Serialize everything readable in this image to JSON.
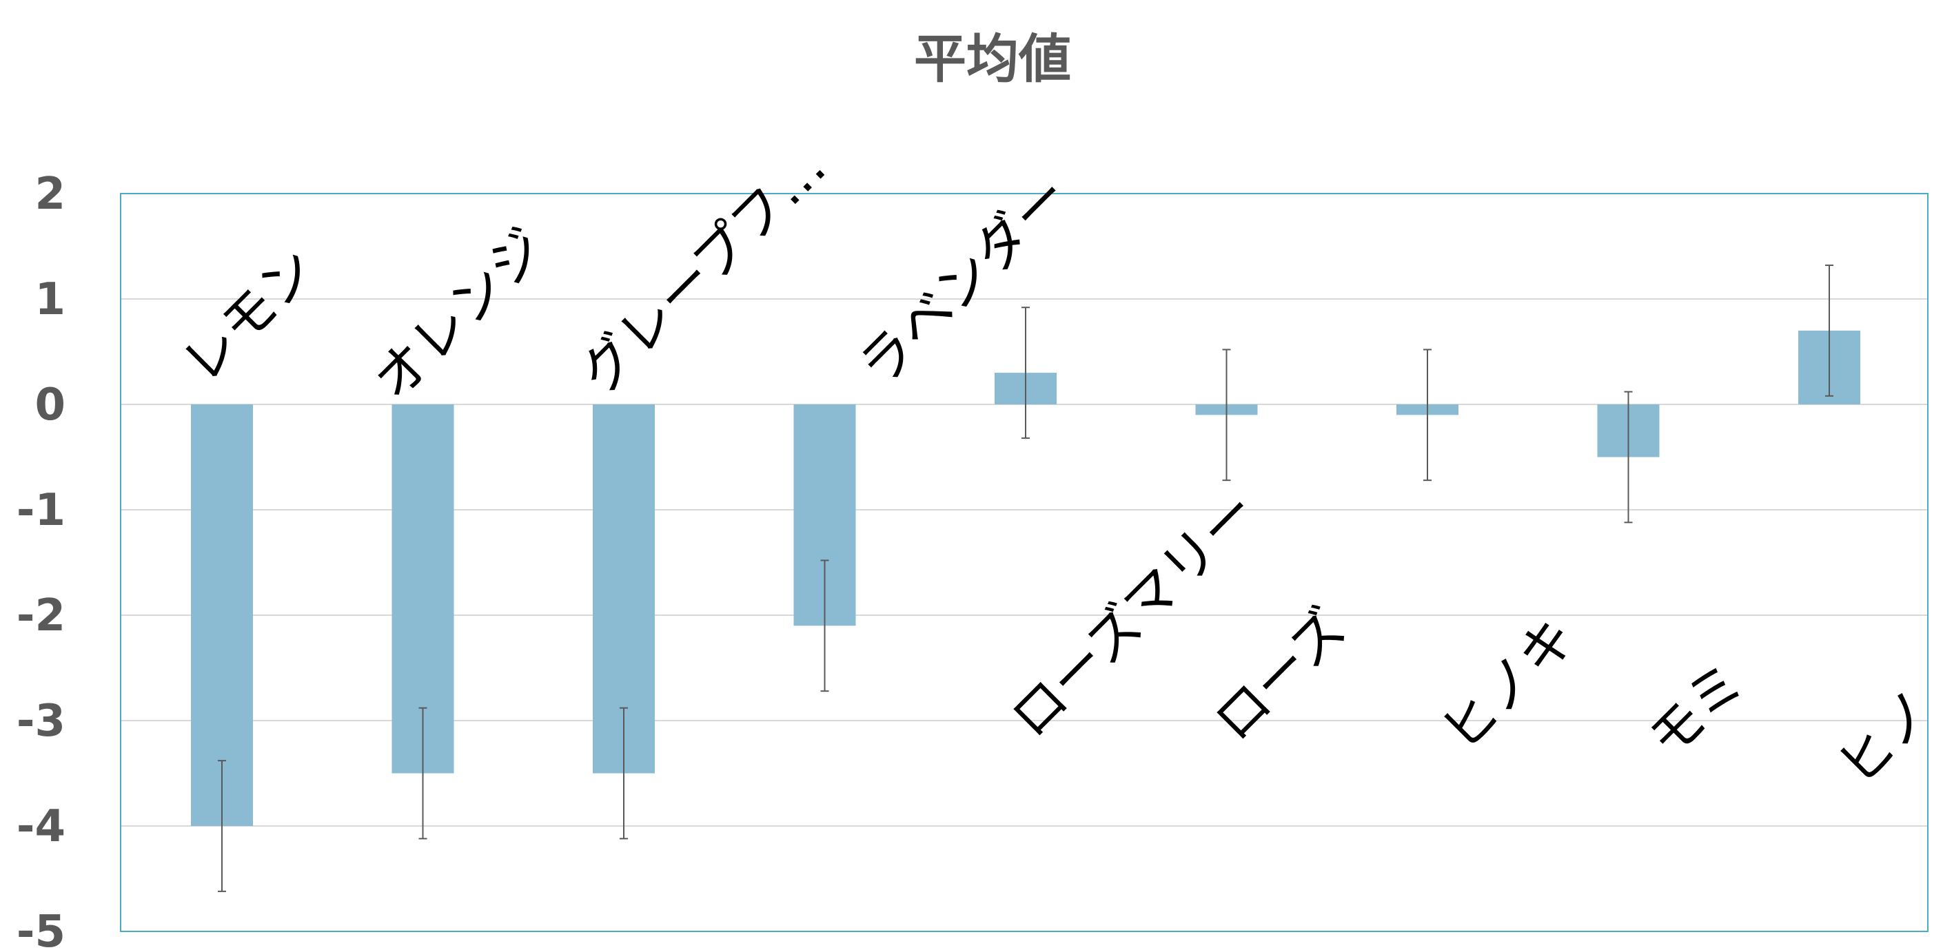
{
  "chart_data": {
    "type": "bar",
    "title": "平均値",
    "xlabel": "",
    "ylabel": "",
    "ylim": [
      -5,
      2
    ],
    "yticks": [
      "2",
      "1",
      "0",
      "-1",
      "-2",
      "-3",
      "-4",
      "-5"
    ],
    "grid": true,
    "legend": "none",
    "categories": [
      "レモン",
      "オレンジ",
      "グレープフ…",
      "ラベンダー",
      "ローズマリー",
      "ローズ",
      "ヒノキ",
      "モミ",
      "ヒノ"
    ],
    "values": [
      -4.0,
      -3.5,
      -3.5,
      -2.1,
      0.3,
      -0.1,
      -0.1,
      -0.5,
      0.7
    ],
    "error_bars": [
      [
        -4.62,
        -3.38
      ],
      [
        -4.12,
        -2.88
      ],
      [
        -4.12,
        -2.88
      ],
      [
        -2.72,
        -1.48
      ],
      [
        -0.32,
        0.92
      ],
      [
        -0.72,
        0.52
      ],
      [
        -0.72,
        0.52
      ],
      [
        -1.12,
        0.12
      ],
      [
        0.08,
        1.32
      ]
    ],
    "colors": {
      "bar": "#8BBAD3",
      "error_bar": "#595959",
      "grid": "#D9D9D9",
      "plot_border": "#4BACC6",
      "text": "#595959",
      "category_text": "#000000"
    }
  }
}
